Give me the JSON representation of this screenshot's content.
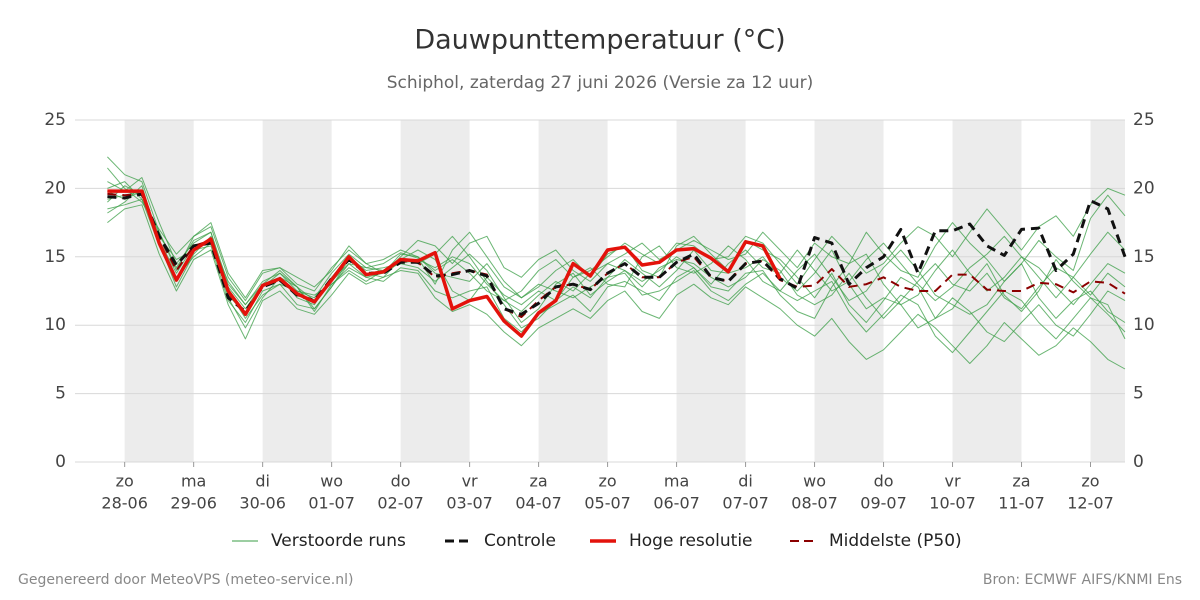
{
  "chart_data": {
    "type": "line",
    "title": "Dauwpunttemperatuur (°C)",
    "subtitle": "Schiphol, zaterdag 27 juni 2026 (Versie za 12 uur)",
    "footer_left": "Gegenereerd door MeteoVPS (meteo-service.nl)",
    "footer_right": "Bron: ECMWF AIFS/KNMI Ens",
    "xlim": [
      -0.72,
      14.5
    ],
    "xticks": [
      {
        "value": 0,
        "label": "zo"
      },
      {
        "value": 1,
        "label": "ma"
      },
      {
        "value": 2,
        "label": "di"
      },
      {
        "value": 3,
        "label": "wo"
      },
      {
        "value": 4,
        "label": "do"
      },
      {
        "value": 5,
        "label": "vr"
      },
      {
        "value": 6,
        "label": "za"
      },
      {
        "value": 7,
        "label": "zo"
      },
      {
        "value": 8,
        "label": "ma"
      },
      {
        "value": 9,
        "label": "di"
      },
      {
        "value": 10,
        "label": "wo"
      },
      {
        "value": 11,
        "label": "do"
      },
      {
        "value": 12,
        "label": "vr"
      },
      {
        "value": 13,
        "label": "za"
      },
      {
        "value": 14,
        "label": "zo"
      }
    ],
    "xtick_dates": [
      "28-06",
      "29-06",
      "30-06",
      "01-07",
      "02-07",
      "03-07",
      "04-07",
      "05-07",
      "06-07",
      "07-07",
      "08-07",
      "09-07",
      "10-07",
      "11-07",
      "12-07"
    ],
    "ylim": [
      0,
      25
    ],
    "yticks": [
      0,
      5,
      10,
      15,
      20,
      25
    ],
    "y2ticks": [
      0,
      5,
      10,
      15,
      20,
      25
    ],
    "grid": true,
    "x": [
      -0.25,
      0,
      0.25,
      0.5,
      0.75,
      1,
      1.25,
      1.5,
      1.75,
      2,
      2.25,
      2.5,
      2.75,
      3,
      3.25,
      3.5,
      3.75,
      4,
      4.25,
      4.5,
      4.75,
      5,
      5.25,
      5.5,
      5.75,
      6,
      6.25,
      6.5,
      6.75,
      7,
      7.25,
      7.5,
      7.75,
      8,
      8.25,
      8.5,
      8.75,
      9,
      9.25,
      9.5,
      9.75,
      10,
      10.25,
      10.5,
      10.75,
      11,
      11.25,
      11.5,
      11.75,
      12,
      12.25,
      12.5,
      12.75,
      13,
      13.25,
      13.5,
      13.75,
      14,
      14.25,
      14.5
    ],
    "ensemble": {
      "name": "Verstoorde runs",
      "color": "#3a9d45",
      "members": [
        [
          20.5,
          19.8,
          20.8,
          17.5,
          14.5,
          16.0,
          16.8,
          13.0,
          11.5,
          13.2,
          13.8,
          12.5,
          12.0,
          13.8,
          15.2,
          14.2,
          14.5,
          15.3,
          14.9,
          13.0,
          15.5,
          16.8,
          15.0,
          13.2,
          12.0,
          12.8,
          14.0,
          14.8,
          13.5,
          15.2,
          15.8,
          14.0,
          13.5,
          15.8,
          16.5,
          15.2,
          14.0,
          16.2,
          15.5,
          14.8,
          13.5,
          12.0,
          13.8,
          11.5,
          10.2,
          11.8,
          13.5,
          12.8,
          10.5,
          11.2,
          13.0,
          14.5,
          12.2,
          11.0,
          12.5,
          14.8,
          13.2,
          12.0,
          10.8,
          9.5
        ],
        [
          18.5,
          18.8,
          19.2,
          15.8,
          13.2,
          15.5,
          15.8,
          11.8,
          10.2,
          12.5,
          13.0,
          11.5,
          11.2,
          12.8,
          14.5,
          13.5,
          13.2,
          14.2,
          14.0,
          12.5,
          12.0,
          12.5,
          12.8,
          10.5,
          9.5,
          10.8,
          11.5,
          12.2,
          11.0,
          12.8,
          13.2,
          12.5,
          11.8,
          13.5,
          14.2,
          12.8,
          12.5,
          13.8,
          14.0,
          12.2,
          11.0,
          10.5,
          12.8,
          14.5,
          15.2,
          13.0,
          11.5,
          12.2,
          14.0,
          15.5,
          13.8,
          12.5,
          13.5,
          15.0,
          14.2,
          12.8,
          11.5,
          13.0,
          14.5,
          13.8
        ],
        [
          19.0,
          20.2,
          19.5,
          16.0,
          12.8,
          15.2,
          16.5,
          12.0,
          9.8,
          12.0,
          13.5,
          12.8,
          11.0,
          13.0,
          14.0,
          13.2,
          14.0,
          14.8,
          15.5,
          14.8,
          12.5,
          11.8,
          13.5,
          12.2,
          11.5,
          12.5,
          11.8,
          13.5,
          14.2,
          13.0,
          12.8,
          15.0,
          15.8,
          14.2,
          13.8,
          14.5,
          15.8,
          14.8,
          13.2,
          12.5,
          14.0,
          15.2,
          13.5,
          11.8,
          12.5,
          14.2,
          15.5,
          14.0,
          12.2,
          11.5,
          10.8,
          11.5,
          13.2,
          14.5,
          12.0,
          10.5,
          11.8,
          12.5,
          11.0,
          10.2
        ],
        [
          21.5,
          20.0,
          19.0,
          17.0,
          15.2,
          16.5,
          17.2,
          13.5,
          11.8,
          13.8,
          14.2,
          13.0,
          12.5,
          14.2,
          15.5,
          14.5,
          13.8,
          15.0,
          16.2,
          15.8,
          14.5,
          16.0,
          16.5,
          14.2,
          13.5,
          14.8,
          15.5,
          14.0,
          13.2,
          14.5,
          15.2,
          16.0,
          14.8,
          15.5,
          16.2,
          15.5,
          14.8,
          15.2,
          16.8,
          15.5,
          14.2,
          16.0,
          15.0,
          14.5,
          16.8,
          15.2,
          14.0,
          13.5,
          15.8,
          17.5,
          16.0,
          14.8,
          13.2,
          14.5,
          16.2,
          15.0,
          14.0,
          17.8,
          19.5,
          18.0
        ],
        [
          17.5,
          18.5,
          18.8,
          15.2,
          12.5,
          14.8,
          15.5,
          11.5,
          9.0,
          11.8,
          12.5,
          11.2,
          10.8,
          12.2,
          13.8,
          13.0,
          13.5,
          14.0,
          13.8,
          12.0,
          11.0,
          11.5,
          10.8,
          9.5,
          8.5,
          9.8,
          10.5,
          11.2,
          10.5,
          11.8,
          12.5,
          11.0,
          10.5,
          12.2,
          13.0,
          12.0,
          11.5,
          12.8,
          12.0,
          11.2,
          10.0,
          9.2,
          10.5,
          8.8,
          7.5,
          8.2,
          9.5,
          10.8,
          9.8,
          8.5,
          7.2,
          8.5,
          10.2,
          9.0,
          7.8,
          8.5,
          9.8,
          8.8,
          7.5,
          6.8
        ],
        [
          19.8,
          19.2,
          19.8,
          16.2,
          13.8,
          15.8,
          16.0,
          12.8,
          11.2,
          13.0,
          13.5,
          12.0,
          11.5,
          13.5,
          15.0,
          14.0,
          14.2,
          14.5,
          14.8,
          14.2,
          15.0,
          14.5,
          13.0,
          11.8,
          11.0,
          12.2,
          13.2,
          12.5,
          13.8,
          14.5,
          14.0,
          13.2,
          14.0,
          15.0,
          14.2,
          13.0,
          14.5,
          15.5,
          14.2,
          13.8,
          15.5,
          14.0,
          12.5,
          13.2,
          14.8,
          16.0,
          14.5,
          13.0,
          11.8,
          12.8,
          14.2,
          15.2,
          16.5,
          15.0,
          13.5,
          12.0,
          13.5,
          15.2,
          16.8,
          15.5
        ],
        [
          20.0,
          20.5,
          19.2,
          16.8,
          14.2,
          16.2,
          16.8,
          12.5,
          10.5,
          12.2,
          13.0,
          12.5,
          12.2,
          13.0,
          14.2,
          13.5,
          13.8,
          15.2,
          15.0,
          13.8,
          13.5,
          13.2,
          14.5,
          12.8,
          12.0,
          13.0,
          12.5,
          12.0,
          12.8,
          13.5,
          14.8,
          13.8,
          12.8,
          14.0,
          15.5,
          14.0,
          13.8,
          14.2,
          15.0,
          13.5,
          12.5,
          13.8,
          15.5,
          13.0,
          11.2,
          12.0,
          11.5,
          9.8,
          10.5,
          12.0,
          11.0,
          9.5,
          8.8,
          10.2,
          11.5,
          10.0,
          9.2,
          10.8,
          12.5,
          11.8
        ],
        [
          18.2,
          19.0,
          20.2,
          16.0,
          13.5,
          15.0,
          16.0,
          12.2,
          10.8,
          12.8,
          13.8,
          12.8,
          11.8,
          13.2,
          14.5,
          14.2,
          14.0,
          14.5,
          14.2,
          13.2,
          14.2,
          15.2,
          14.0,
          12.0,
          10.2,
          11.2,
          13.0,
          13.8,
          12.2,
          13.2,
          14.0,
          12.8,
          14.2,
          14.8,
          14.5,
          13.5,
          12.8,
          13.5,
          14.8,
          14.0,
          12.2,
          11.5,
          12.2,
          13.8,
          12.0,
          10.5,
          11.8,
          13.2,
          14.5,
          13.0,
          12.5,
          13.8,
          12.0,
          11.2,
          12.8,
          14.2,
          13.5,
          12.2,
          13.8,
          12.8
        ],
        [
          19.2,
          19.5,
          19.8,
          16.5,
          14.8,
          15.5,
          16.2,
          13.2,
          11.5,
          13.0,
          14.0,
          12.8,
          11.2,
          12.8,
          14.8,
          13.8,
          13.5,
          14.8,
          14.5,
          15.2,
          16.5,
          15.0,
          13.2,
          11.5,
          9.8,
          10.5,
          11.8,
          12.8,
          12.0,
          13.5,
          13.8,
          12.2,
          12.5,
          13.2,
          14.0,
          12.5,
          11.8,
          13.0,
          13.8,
          12.5,
          11.8,
          12.5,
          13.2,
          11.0,
          9.5,
          10.8,
          12.2,
          11.5,
          9.2,
          8.0,
          9.5,
          11.0,
          12.5,
          11.8,
          10.2,
          9.0,
          10.5,
          12.0,
          11.5,
          9.0
        ],
        [
          22.3,
          21.0,
          20.5,
          16.8,
          14.0,
          16.5,
          17.5,
          13.8,
          12.0,
          14.0,
          14.2,
          13.5,
          12.8,
          14.0,
          15.8,
          14.5,
          14.8,
          15.5,
          15.0,
          14.0,
          14.8,
          13.8,
          12.5,
          11.8,
          12.5,
          14.0,
          14.8,
          13.5,
          14.0,
          15.0,
          16.0,
          15.2,
          14.5,
          16.0,
          15.8,
          14.8,
          15.0,
          16.5,
          16.0,
          14.5,
          13.0,
          14.8,
          16.5,
          15.2,
          13.8,
          14.5,
          16.0,
          17.2,
          16.5,
          15.0,
          16.8,
          18.5,
          17.0,
          15.5,
          17.2,
          18.0,
          16.5,
          18.8,
          20.0,
          19.5
        ]
      ]
    },
    "series": [
      {
        "name": "Controle",
        "color": "#111111",
        "dash": true,
        "width": 3,
        "values": [
          19.4,
          19.3,
          19.6,
          16.5,
          14.4,
          15.8,
          16.0,
          12.0,
          11.0,
          12.8,
          13.3,
          12.2,
          11.8,
          13.4,
          14.8,
          13.8,
          13.8,
          14.6,
          14.6,
          13.6,
          13.7,
          14.0,
          13.6,
          11.2,
          10.8,
          11.6,
          12.8,
          13.0,
          12.6,
          13.8,
          14.5,
          13.5,
          13.5,
          14.6,
          15.2,
          13.5,
          13.2,
          14.5,
          14.7,
          13.4,
          12.7,
          16.4,
          16.0,
          13.0,
          14.2,
          15.0,
          17.0,
          13.8,
          16.9,
          16.9,
          17.4,
          15.8,
          15.1,
          17.0,
          17.1,
          14.0,
          15.2,
          19.1,
          18.5,
          15.0
        ]
      },
      {
        "name": "Hoge resolutie",
        "color": "#e3120b",
        "dash": false,
        "width": 3.5,
        "values": [
          19.8,
          19.8,
          19.8,
          16.0,
          13.3,
          15.5,
          16.3,
          12.5,
          10.8,
          12.9,
          13.4,
          12.3,
          11.7,
          13.3,
          15.0,
          13.7,
          13.9,
          14.8,
          14.7,
          15.3,
          11.2,
          11.8,
          12.1,
          10.3,
          9.2,
          10.9,
          11.8,
          14.5,
          13.6,
          15.5,
          15.7,
          14.4,
          14.6,
          15.5,
          15.6,
          14.9,
          13.9,
          16.1,
          15.8,
          13.4,
          null,
          null,
          null,
          null,
          null,
          null,
          null,
          null,
          null,
          null,
          null,
          null,
          null,
          null,
          null,
          null,
          null,
          null,
          null,
          null
        ]
      },
      {
        "name": "Middelste (P50)",
        "color": "#8b0000",
        "dash": true,
        "width": 2,
        "values": [
          19.6,
          19.5,
          19.6,
          16.5,
          14.0,
          15.8,
          16.2,
          12.3,
          10.9,
          12.8,
          13.3,
          12.2,
          11.8,
          13.3,
          14.8,
          13.8,
          13.9,
          14.7,
          14.6,
          13.5,
          13.8,
          14.0,
          13.7,
          11.2,
          10.6,
          11.8,
          12.8,
          13.0,
          12.6,
          13.8,
          14.5,
          13.5,
          13.5,
          14.6,
          15.0,
          13.5,
          13.2,
          14.5,
          14.7,
          13.3,
          12.8,
          12.9,
          14.1,
          12.8,
          13.0,
          13.5,
          12.8,
          12.5,
          12.5,
          13.7,
          13.7,
          12.6,
          12.5,
          12.5,
          13.1,
          13.0,
          12.4,
          13.2,
          13.1,
          12.3
        ]
      }
    ]
  }
}
